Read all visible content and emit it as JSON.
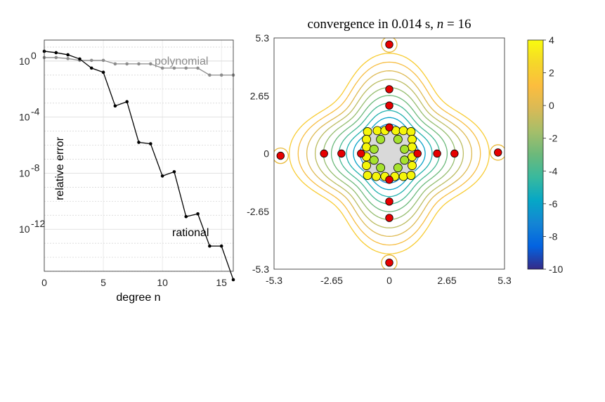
{
  "chart_data": [
    {
      "type": "line",
      "xlabel": "degree n",
      "ylabel": "relative error",
      "xlim": [
        0,
        16
      ],
      "ylim_log10": [
        -15,
        1.5
      ],
      "xticks": [
        "0",
        "5",
        "10",
        "15"
      ],
      "yticks": [
        {
          "base": "10",
          "exp": "0",
          "log10": 0
        },
        {
          "base": "10",
          "exp": "-4",
          "log10": -4
        },
        {
          "base": "10",
          "exp": "-8",
          "log10": -8
        },
        {
          "base": "10",
          "exp": "-12",
          "log10": -12
        }
      ],
      "series": [
        {
          "name": "polynomial",
          "color": "#8c8c8c",
          "x": [
            0,
            1,
            2,
            3,
            4,
            5,
            6,
            7,
            8,
            9,
            10,
            11,
            12,
            13,
            14,
            15,
            16
          ],
          "log10_values": [
            0.25,
            0.25,
            0.18,
            0.05,
            0.05,
            0.05,
            -0.2,
            -0.2,
            -0.2,
            -0.2,
            -0.5,
            -0.5,
            -0.5,
            -0.5,
            -1.0,
            -1.0,
            -1.0
          ]
        },
        {
          "name": "rational",
          "color": "#000000",
          "x": [
            0,
            1,
            2,
            3,
            4,
            5,
            6,
            7,
            8,
            9,
            10,
            11,
            12,
            13,
            14,
            15,
            16
          ],
          "log10_values": [
            0.7,
            0.6,
            0.45,
            0.15,
            -0.5,
            -0.8,
            -3.2,
            -2.9,
            -5.8,
            -5.9,
            -8.2,
            -7.9,
            -11.1,
            -10.9,
            -13.2,
            -13.2,
            -16.2
          ]
        }
      ]
    },
    {
      "type": "contour",
      "title": "convergence in 0.014 s, n = 16",
      "title_parts": {
        "prefix": "convergence in 0.014 s, ",
        "var": "n",
        "suffix": " = 16"
      },
      "xlim": [
        -5.3,
        5.3
      ],
      "ylim": [
        -5.3,
        5.3
      ],
      "xticks": [
        "-5.3",
        "-2.65",
        "0",
        "2.65",
        "5.3"
      ],
      "yticks": [
        "5.3",
        "2.65",
        "0",
        "-2.65",
        "-5.3"
      ],
      "colorbar": {
        "min": -10,
        "max": 4,
        "ticks": [
          "4",
          "2",
          "0",
          "-2",
          "-4",
          "-6",
          "-8",
          "-10"
        ]
      },
      "contour_levels": [
        -10,
        -9,
        -8,
        -7,
        -6,
        -5,
        -4,
        -3,
        -2,
        -1,
        0,
        1,
        2
      ],
      "poles": [
        {
          "x": 0,
          "y": 5.0
        },
        {
          "x": 0,
          "y": 2.95
        },
        {
          "x": 0,
          "y": 2.2
        },
        {
          "x": 0,
          "y": 1.2
        },
        {
          "x": 0,
          "y": -1.2
        },
        {
          "x": 0,
          "y": -2.2
        },
        {
          "x": 0,
          "y": -2.95
        },
        {
          "x": 0,
          "y": -5.0
        },
        {
          "x": 5.0,
          "y": 0.05
        },
        {
          "x": 3.0,
          "y": 0
        },
        {
          "x": 2.2,
          "y": 0
        },
        {
          "x": 1.3,
          "y": 0
        },
        {
          "x": -1.3,
          "y": 0
        },
        {
          "x": -2.2,
          "y": 0
        },
        {
          "x": -3.0,
          "y": 0
        },
        {
          "x": -5.0,
          "y": -0.1
        }
      ],
      "support_points": [
        {
          "x": -1.0,
          "y": 1.0,
          "c": "yellow"
        },
        {
          "x": -0.55,
          "y": 1.05,
          "c": "yellow"
        },
        {
          "x": -0.2,
          "y": 1.05,
          "c": "yellow"
        },
        {
          "x": 0.3,
          "y": 1.05,
          "c": "yellow"
        },
        {
          "x": 0.65,
          "y": 1.05,
          "c": "yellow"
        },
        {
          "x": 1.0,
          "y": 1.0,
          "c": "yellow"
        },
        {
          "x": -0.4,
          "y": 0.65,
          "c": "green"
        },
        {
          "x": 0.4,
          "y": 0.65,
          "c": "green"
        },
        {
          "x": -1.05,
          "y": 0.65,
          "c": "yellow"
        },
        {
          "x": 1.05,
          "y": 0.65,
          "c": "yellow"
        },
        {
          "x": -1.05,
          "y": 0.3,
          "c": "yellow"
        },
        {
          "x": 1.05,
          "y": 0.3,
          "c": "yellow"
        },
        {
          "x": -0.7,
          "y": 0.2,
          "c": "green"
        },
        {
          "x": 0.7,
          "y": 0.2,
          "c": "green"
        },
        {
          "x": -1.05,
          "y": -0.15,
          "c": "yellow"
        },
        {
          "x": 1.05,
          "y": -0.15,
          "c": "yellow"
        },
        {
          "x": -0.7,
          "y": -0.3,
          "c": "green"
        },
        {
          "x": 0.7,
          "y": -0.3,
          "c": "green"
        },
        {
          "x": -1.05,
          "y": -0.55,
          "c": "yellow"
        },
        {
          "x": 1.05,
          "y": -0.55,
          "c": "yellow"
        },
        {
          "x": -0.4,
          "y": -0.65,
          "c": "green"
        },
        {
          "x": 0.4,
          "y": -0.65,
          "c": "green"
        },
        {
          "x": -1.0,
          "y": -1.0,
          "c": "yellow"
        },
        {
          "x": -0.6,
          "y": -1.05,
          "c": "yellow"
        },
        {
          "x": -0.2,
          "y": -1.05,
          "c": "yellow"
        },
        {
          "x": 0.25,
          "y": -1.05,
          "c": "yellow"
        },
        {
          "x": 0.65,
          "y": -1.05,
          "c": "yellow"
        },
        {
          "x": 1.0,
          "y": -1.0,
          "c": "yellow"
        }
      ]
    }
  ]
}
